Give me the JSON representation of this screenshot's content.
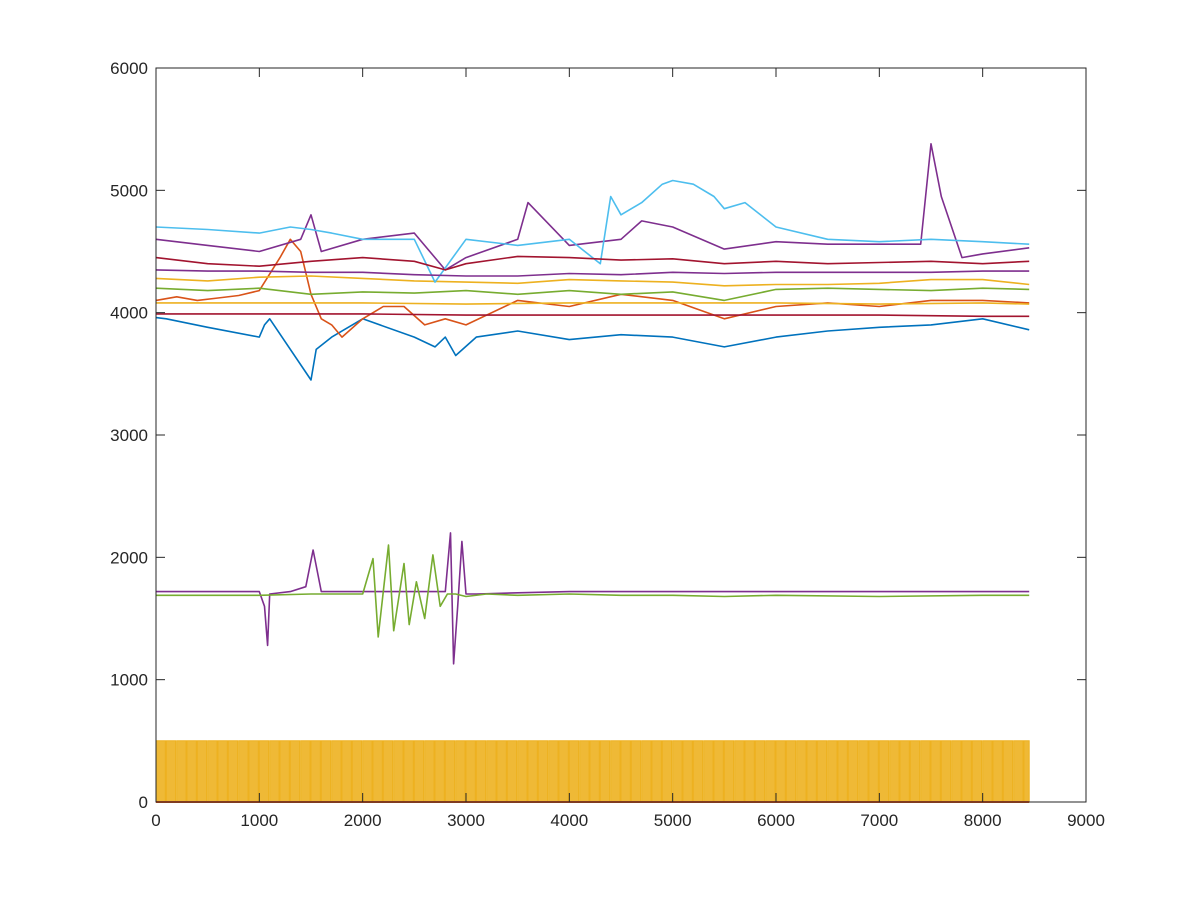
{
  "chart_data": {
    "type": "line",
    "title": "",
    "xlabel": "",
    "ylabel": "",
    "xlim": [
      0,
      9000
    ],
    "ylim": [
      0,
      6000
    ],
    "x_ticks": [
      0,
      1000,
      2000,
      3000,
      4000,
      5000,
      6000,
      7000,
      8000,
      9000
    ],
    "y_ticks": [
      0,
      1000,
      2000,
      3000,
      4000,
      5000,
      6000
    ],
    "x_tick_labels": [
      "0",
      "1000",
      "2000",
      "3000",
      "4000",
      "5000",
      "6000",
      "7000",
      "8000",
      "9000"
    ],
    "y_tick_labels": [
      "0",
      "1000",
      "2000",
      "3000",
      "4000",
      "5000",
      "6000"
    ],
    "grid": false,
    "legend": "none",
    "series": [
      {
        "color": "#0072BD",
        "x": [
          0,
          100,
          500,
          1000,
          1050,
          1100,
          1500,
          1550,
          1700,
          2000,
          2500,
          2700,
          2800,
          2900,
          3100,
          3500,
          4000,
          4500,
          5000,
          5500,
          6000,
          6500,
          7000,
          7500,
          8000,
          8450
        ],
        "y": [
          3960,
          3950,
          3880,
          3800,
          3900,
          3950,
          3450,
          3700,
          3800,
          3950,
          3800,
          3720,
          3800,
          3650,
          3800,
          3850,
          3780,
          3820,
          3800,
          3720,
          3800,
          3850,
          3880,
          3900,
          3950,
          3860
        ]
      },
      {
        "color": "#D95319",
        "x": [
          0,
          200,
          400,
          600,
          800,
          1000,
          1200,
          1300,
          1400,
          1500,
          1600,
          1700,
          1800,
          2000,
          2200,
          2400,
          2600,
          2800,
          3000,
          3500,
          4000,
          4500,
          5000,
          5500,
          6000,
          6500,
          7000,
          7500,
          8000,
          8450
        ],
        "y": [
          4100,
          4130,
          4100,
          4120,
          4140,
          4180,
          4450,
          4600,
          4500,
          4150,
          3950,
          3900,
          3800,
          3950,
          4050,
          4050,
          3900,
          3950,
          3900,
          4100,
          4050,
          4150,
          4100,
          3950,
          4050,
          4080,
          4050,
          4100,
          4100,
          4080
        ]
      },
      {
        "color": "#EDB120",
        "x": [
          0,
          500,
          1000,
          1500,
          2000,
          2500,
          3000,
          3500,
          4000,
          4500,
          5000,
          5500,
          6000,
          6500,
          7000,
          7500,
          8000,
          8450
        ],
        "y": [
          4280,
          4260,
          4290,
          4300,
          4280,
          4260,
          4250,
          4240,
          4270,
          4260,
          4250,
          4220,
          4230,
          4230,
          4240,
          4270,
          4270,
          4230
        ]
      },
      {
        "color": "#7E2F8E",
        "x": [
          0,
          500,
          1000,
          1400,
          1500,
          1600,
          2000,
          2500,
          2800,
          3000,
          3500,
          3600,
          4000,
          4500,
          4700,
          5000,
          5500,
          6000,
          6500,
          7000,
          7400,
          7500,
          7600,
          7800,
          8000,
          8450
        ],
        "y": [
          4600,
          4550,
          4500,
          4600,
          4800,
          4500,
          4600,
          4650,
          4350,
          4450,
          4600,
          4900,
          4550,
          4600,
          4750,
          4700,
          4520,
          4580,
          4560,
          4560,
          4560,
          5380,
          4950,
          4450,
          4480,
          4530
        ]
      },
      {
        "color": "#77AC30",
        "x": [
          0,
          500,
          1000,
          1500,
          2000,
          2500,
          3000,
          3500,
          4000,
          4500,
          5000,
          5500,
          6000,
          6500,
          7000,
          7500,
          8000,
          8450
        ],
        "y": [
          4200,
          4180,
          4200,
          4150,
          4170,
          4160,
          4180,
          4150,
          4180,
          4150,
          4170,
          4100,
          4190,
          4200,
          4190,
          4180,
          4200,
          4190
        ]
      },
      {
        "color": "#4DBEEE",
        "x": [
          0,
          500,
          1000,
          1300,
          1500,
          1700,
          2000,
          2500,
          2700,
          3000,
          3500,
          4000,
          4300,
          4400,
          4500,
          4700,
          4900,
          5000,
          5200,
          5400,
          5500,
          5700,
          6000,
          6500,
          7000,
          7500,
          8000,
          8450
        ],
        "y": [
          4700,
          4680,
          4650,
          4700,
          4680,
          4650,
          4600,
          4600,
          4250,
          4600,
          4550,
          4600,
          4400,
          4950,
          4800,
          4900,
          5050,
          5080,
          5050,
          4950,
          4850,
          4900,
          4700,
          4600,
          4580,
          4600,
          4580,
          4560
        ]
      },
      {
        "color": "#A2142F",
        "x": [
          0,
          500,
          1000,
          1500,
          2000,
          2500,
          2800,
          3000,
          3500,
          4000,
          4500,
          5000,
          5500,
          6000,
          6500,
          7000,
          7500,
          8000,
          8450
        ],
        "y": [
          4450,
          4400,
          4380,
          4420,
          4450,
          4420,
          4350,
          4400,
          4460,
          4450,
          4430,
          4440,
          4400,
          4420,
          4400,
          4410,
          4420,
          4400,
          4420
        ]
      },
      {
        "color": "#7E2F8E",
        "x": [
          0,
          500,
          1000,
          1500,
          2000,
          2500,
          3000,
          3500,
          4000,
          4500,
          5000,
          5500,
          6000,
          6500,
          7000,
          7500,
          8000,
          8450
        ],
        "y": [
          4350,
          4340,
          4340,
          4330,
          4330,
          4310,
          4300,
          4300,
          4320,
          4310,
          4330,
          4320,
          4330,
          4330,
          4330,
          4330,
          4340,
          4340
        ]
      },
      {
        "color": "#EDB120",
        "x": [
          0,
          1000,
          2000,
          3000,
          4000,
          5000,
          6000,
          7000,
          8000,
          8450
        ],
        "y": [
          4080,
          4080,
          4080,
          4070,
          4080,
          4080,
          4080,
          4070,
          4080,
          4070
        ]
      },
      {
        "color": "#A2142F",
        "x": [
          0,
          1000,
          2000,
          3000,
          4000,
          5000,
          6000,
          7000,
          8000,
          8450
        ],
        "y": [
          3990,
          3990,
          3990,
          3980,
          3980,
          3980,
          3980,
          3980,
          3970,
          3970
        ]
      },
      {
        "color": "#7E2F8E",
        "x": [
          0,
          500,
          1000,
          1050,
          1080,
          1100,
          1300,
          1450,
          1520,
          1600,
          2000,
          2500,
          2800,
          2850,
          2880,
          2920,
          2960,
          3000,
          3100,
          3500,
          4000,
          4500,
          5000,
          5500,
          6000,
          7000,
          8000,
          8450
        ],
        "y": [
          1720,
          1720,
          1720,
          1600,
          1280,
          1700,
          1720,
          1760,
          2060,
          1720,
          1720,
          1720,
          1720,
          2200,
          1130,
          1600,
          2130,
          1700,
          1700,
          1710,
          1720,
          1720,
          1720,
          1720,
          1720,
          1720,
          1720,
          1720
        ]
      },
      {
        "color": "#77AC30",
        "x": [
          0,
          500,
          1000,
          1500,
          2000,
          2100,
          2150,
          2250,
          2300,
          2400,
          2450,
          2520,
          2600,
          2680,
          2750,
          2820,
          2900,
          3000,
          3200,
          3500,
          4000,
          4500,
          5000,
          5500,
          6000,
          7000,
          8000,
          8450
        ],
        "y": [
          1690,
          1690,
          1690,
          1700,
          1700,
          1990,
          1350,
          2100,
          1400,
          1950,
          1450,
          1800,
          1500,
          2020,
          1600,
          1700,
          1700,
          1680,
          1700,
          1690,
          1700,
          1690,
          1690,
          1680,
          1690,
          1680,
          1690,
          1690
        ]
      }
    ],
    "pulse_series": {
      "color": "#EDB120",
      "x_start": 0,
      "x_end": 8450,
      "period": 100,
      "low": 0,
      "high": 500
    },
    "baseline_series": {
      "color": "#D95319",
      "x": [
        0,
        8450
      ],
      "y": [
        0,
        0
      ]
    }
  }
}
